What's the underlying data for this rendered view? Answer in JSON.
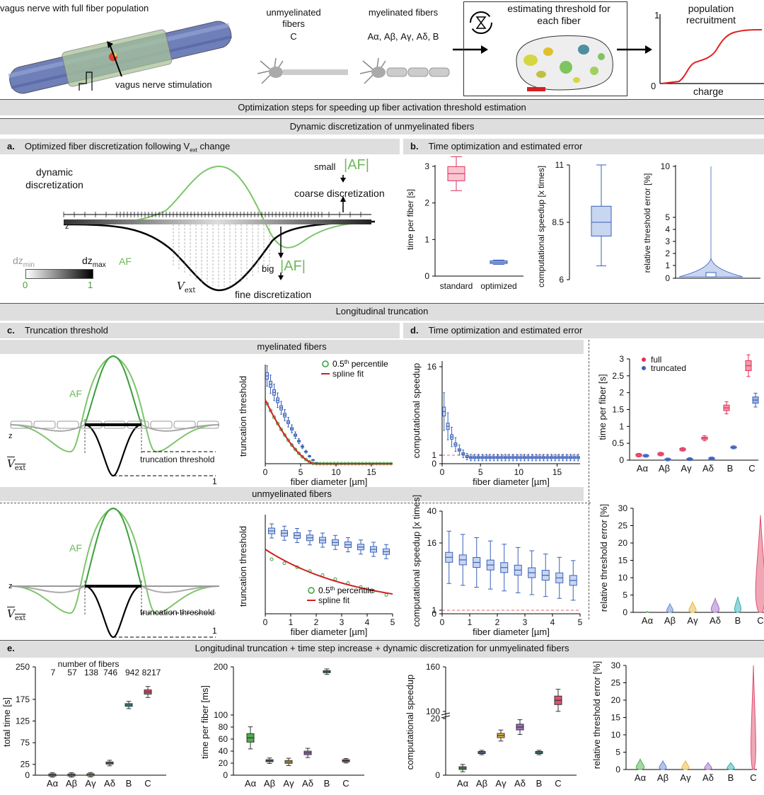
{
  "top": {
    "nerve_title": "vagus nerve with full fiber population",
    "stim_label": "vagus nerve stimulation",
    "unmyel_title": "unmyelinated fibers",
    "unmyel_types": "C",
    "myel_title": "myelinated fibers",
    "myel_types": "Aα, Aβ, Aγ, Aδ, B",
    "estimate_title": "estimating threshold for each fiber",
    "recruit_title": "population recruitment",
    "recruit_x": "charge",
    "recruit_y_top": "1",
    "recruit_y_zero": "0"
  },
  "sections": {
    "main": "Optimization steps for speeding up fiber activation threshold estimation",
    "dyn": "Dynamic discretization of unmyelinated fibers",
    "long": "Longitudinal truncation",
    "e_title": "Longitudinal truncation + time step increase + dynamic discretization for unmyelinated fibers"
  },
  "panel_a": {
    "letter": "a.",
    "title_pre": "Optimized fiber discretization following V",
    "title_sub": "ext",
    "title_post": " change",
    "dyn_label": "dynamic discretization",
    "small": "small",
    "af_abs": "|AF|",
    "coarse": "coarse discretization",
    "big": "big",
    "fine": "fine discretization",
    "z": "z",
    "dzmin": "dz",
    "dzmin_sub": "min",
    "dzmax": "dz",
    "dzmax_sub": "max",
    "af": "AF",
    "zero": "0",
    "one": "1",
    "vext": "V",
    "vext_sub": "ext"
  },
  "panel_b": {
    "letter": "b.",
    "title": "Time optimization and estimated error",
    "y1": "time per fiber [s]",
    "y2": "computational speedup [x times]",
    "y3": "relative threshold error [%]"
  },
  "panel_c": {
    "letter": "c.",
    "title": "Truncation threshold",
    "myel": "myelinated fibers",
    "unmyel": "unmyelinated fibers",
    "af": "AF",
    "trunc": "truncation threshold",
    "one": "1",
    "z": "z",
    "vext": "V",
    "vext_sub": "ext",
    "ylab": "truncation threshold",
    "xlab": "fiber diameter [µm]",
    "leg_pct": "0.5",
    "leg_pct_sup": "th",
    "leg_pct_post": " percentile",
    "leg_spline": "spline fit"
  },
  "panel_d": {
    "letter": "d.",
    "title": "Time optimization and estimated error",
    "y_speed": "computational speedup",
    "y_speed2": "computational speedup [x times]",
    "xlab": "fiber diameter [µm]",
    "y_time": "time per fiber [s]",
    "y_err": "relative threshold error [%]",
    "leg_full": "full",
    "leg_trunc": "truncated"
  },
  "panel_e": {
    "letter": "e.",
    "y_total": "total time [s]",
    "nfib_title": "number of fibers",
    "nfib": [
      "7",
      "57",
      "138",
      "746",
      "942",
      "8217"
    ],
    "y_tpf": "time per fiber [ms]",
    "y_speed": "computational speedup",
    "y_err": "relative threshold error [%]"
  },
  "fiber_types": [
    "Aα",
    "Aβ",
    "Aγ",
    "Aδ",
    "B",
    "C"
  ],
  "colors": {
    "red": "#e0305a",
    "blue": "#3a62b8",
    "green": "#3aa03a",
    "lightgreen": "#7dc56b",
    "boxblue": "#c9d6f0"
  },
  "chart_data": [
    {
      "type": "box",
      "panel": "b-1",
      "categories": [
        "standard",
        "optimized"
      ],
      "ylabel": "time per fiber [s]",
      "ylim": [
        0,
        3
      ],
      "yticks": [
        "0",
        "1",
        "2",
        "3"
      ],
      "median": [
        2.8,
        0.38
      ]
    },
    {
      "type": "box",
      "panel": "b-2",
      "ylabel": "computational speedup [x times]",
      "yticks": [
        "6",
        "8.5",
        "11"
      ],
      "median": [
        8.5
      ],
      "range": [
        6.5,
        11
      ]
    },
    {
      "type": "violin",
      "panel": "b-3",
      "ylabel": "relative threshold error [%]",
      "yticks": [
        "0",
        "1",
        "2",
        "3",
        "4",
        "5",
        "10"
      ]
    },
    {
      "type": "box",
      "panel": "c-myel",
      "title": "myelinated fibers",
      "xlabel": "fiber diameter [µm]",
      "ylabel": "truncation threshold",
      "xticks": [
        "0",
        "5",
        "10",
        "15"
      ],
      "xlim": [
        0,
        18
      ],
      "series": [
        {
          "name": "0.5th percentile"
        },
        {
          "name": "spline fit"
        }
      ]
    },
    {
      "type": "box",
      "panel": "c-unmyel",
      "title": "unmyelinated fibers",
      "xlabel": "fiber diameter [µm]",
      "ylabel": "truncation threshold",
      "xticks": [
        "0",
        "1",
        "2",
        "3",
        "4",
        "5"
      ],
      "xlim": [
        0,
        5
      ],
      "series": [
        {
          "name": "0.5th percentile"
        },
        {
          "name": "spline fit"
        }
      ]
    },
    {
      "type": "box",
      "panel": "d-myel",
      "xlabel": "fiber diameter [µm]",
      "ylabel": "computational speedup",
      "yticks": [
        "0",
        "1",
        "16"
      ],
      "xticks": [
        "0",
        "5",
        "10",
        "15"
      ]
    },
    {
      "type": "box",
      "panel": "d-unmyel",
      "xlabel": "fiber diameter [µm]",
      "ylabel": "computational speedup [x times]",
      "yticks": [
        "0",
        "1",
        "16",
        "40"
      ],
      "xticks": [
        "0",
        "1",
        "2",
        "3",
        "4",
        "5"
      ]
    },
    {
      "type": "box",
      "panel": "d-time",
      "categories": [
        "Aα",
        "Aβ",
        "Aγ",
        "Aδ",
        "B",
        "C"
      ],
      "ylabel": "time per fiber [s]",
      "yticks": [
        "0",
        "0.5",
        "1",
        "1.5",
        "2",
        "2.5",
        "3"
      ],
      "ylim": [
        0,
        3
      ],
      "series": [
        {
          "name": "full",
          "values": [
            0.15,
            0.18,
            0.32,
            0.65,
            1.55,
            2.8
          ]
        },
        {
          "name": "truncated",
          "values": [
            0.13,
            0.02,
            0.03,
            0.05,
            0.38,
            1.78
          ]
        }
      ]
    },
    {
      "type": "violin",
      "panel": "d-err",
      "categories": [
        "Aα",
        "Aβ",
        "Aγ",
        "Aδ",
        "B",
        "C"
      ],
      "ylabel": "relative threshold error [%]",
      "yticks": [
        "0",
        "5",
        "10",
        "15",
        "20",
        "25",
        "30"
      ],
      "ylim": [
        0,
        30
      ]
    },
    {
      "type": "box",
      "panel": "e-total",
      "categories": [
        "Aα",
        "Aβ",
        "Aγ",
        "Aδ",
        "B",
        "C"
      ],
      "ylabel": "total time [s]",
      "yticks": [
        "0",
        "25",
        "75",
        "125",
        "175",
        "250"
      ],
      "values": [
        0.5,
        0.5,
        1,
        28,
        162,
        192
      ]
    },
    {
      "type": "box",
      "panel": "e-tpf",
      "categories": [
        "Aα",
        "Aβ",
        "Aγ",
        "Aδ",
        "B",
        "C"
      ],
      "ylabel": "time per fiber [ms]",
      "yticks": [
        "0",
        "20",
        "40",
        "60",
        "80",
        "100",
        "200"
      ],
      "values": [
        62,
        24,
        22,
        37,
        190,
        24
      ]
    },
    {
      "type": "box",
      "panel": "e-speed",
      "categories": [
        "Aα",
        "Aβ",
        "Aγ",
        "Aδ",
        "B",
        "C"
      ],
      "ylabel": "computational speedup",
      "yticks": [
        "0",
        "20",
        "100",
        "160"
      ],
      "values": [
        2.5,
        8,
        14,
        17,
        8,
        115
      ]
    },
    {
      "type": "violin",
      "panel": "e-err",
      "categories": [
        "Aα",
        "Aβ",
        "Aγ",
        "Aδ",
        "B",
        "C"
      ],
      "ylabel": "relative threshold error [%]",
      "yticks": [
        "0",
        "5",
        "10",
        "15",
        "20",
        "25",
        "30"
      ],
      "ylim": [
        0,
        30
      ]
    }
  ]
}
